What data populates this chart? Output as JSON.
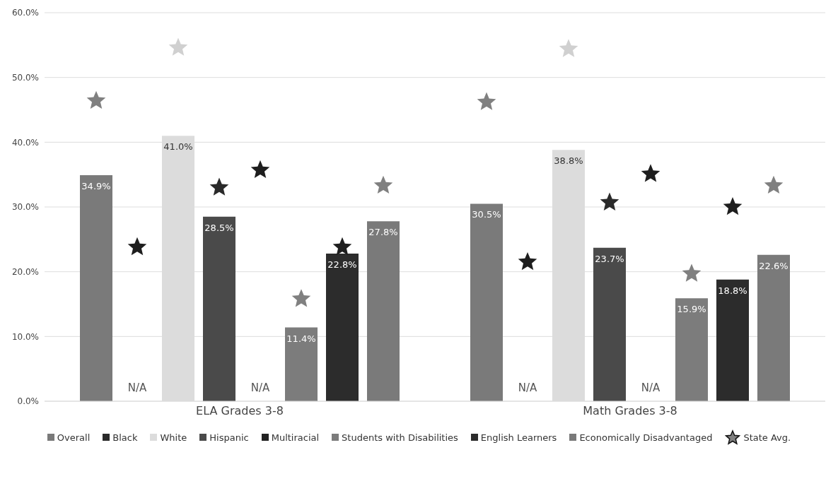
{
  "chart_data": {
    "type": "bar",
    "categories": [
      "ELA Grades 3-8",
      "Math Grades 3-8"
    ],
    "ylim": [
      0,
      60
    ],
    "yticks": [
      {
        "value": 0,
        "label": "0.0%"
      },
      {
        "value": 10,
        "label": "10.0%"
      },
      {
        "value": 20,
        "label": "20.0%"
      },
      {
        "value": 30,
        "label": "30.0%"
      },
      {
        "value": 40,
        "label": "40.0%"
      },
      {
        "value": 50,
        "label": "50.0%"
      },
      {
        "value": 60,
        "label": "60.0%"
      }
    ],
    "grid": "y",
    "legend": "bottom",
    "marker": "star",
    "series": [
      {
        "name": "Overall",
        "color": "#7a7a7a",
        "values": [
          34.9,
          30.5
        ],
        "value_labels": [
          "34.9%",
          "30.5%"
        ]
      },
      {
        "name": "Black",
        "color": "#2a2a2a",
        "values": [
          null,
          null
        ],
        "value_labels": [
          "N/A",
          "N/A"
        ]
      },
      {
        "name": "White",
        "color": "#dcdcdc",
        "values": [
          41.0,
          38.8
        ],
        "value_labels": [
          "41.0%",
          "38.8%"
        ]
      },
      {
        "name": "Hispanic",
        "color": "#4a4a4a",
        "values": [
          28.5,
          23.7
        ],
        "value_labels": [
          "28.5%",
          "23.7%"
        ]
      },
      {
        "name": "Multiracial",
        "color": "#222222",
        "values": [
          null,
          null
        ],
        "value_labels": [
          "N/A",
          "N/A"
        ]
      },
      {
        "name": "Students with Disabilities",
        "color": "#7c7c7c",
        "values": [
          11.4,
          15.9
        ],
        "value_labels": [
          "11.4%",
          "15.9%"
        ]
      },
      {
        "name": "English Learners",
        "color": "#2c2c2c",
        "values": [
          22.8,
          18.8
        ],
        "value_labels": [
          "22.8%",
          "18.8%"
        ]
      },
      {
        "name": "Economically Disadvantaged",
        "color": "#7a7a7a",
        "values": [
          27.8,
          22.6
        ],
        "value_labels": [
          "27.8%",
          "22.6%"
        ]
      },
      {
        "type": "scatter",
        "name": "State Avg.",
        "color": "#808080",
        "values": [
          46.4,
          46.2
        ]
      },
      {
        "type": "scatter",
        "color": "#1e1e1e",
        "values": [
          23.8,
          21.5
        ]
      },
      {
        "type": "scatter",
        "color": "#d0d0d0",
        "values": [
          54.6,
          54.4
        ]
      },
      {
        "type": "scatter",
        "color": "#2a2a2a",
        "values": [
          33.0,
          30.7
        ]
      },
      {
        "type": "scatter",
        "color": "#1e1e1e",
        "values": [
          35.7,
          35.1
        ]
      },
      {
        "type": "scatter",
        "color": "#808080",
        "values": [
          15.8,
          19.7
        ]
      },
      {
        "type": "scatter",
        "color": "#1e1e1e",
        "values": [
          23.8,
          30.0
        ]
      },
      {
        "type": "scatter",
        "color": "#808080",
        "values": [
          33.3,
          33.3
        ]
      }
    ]
  }
}
